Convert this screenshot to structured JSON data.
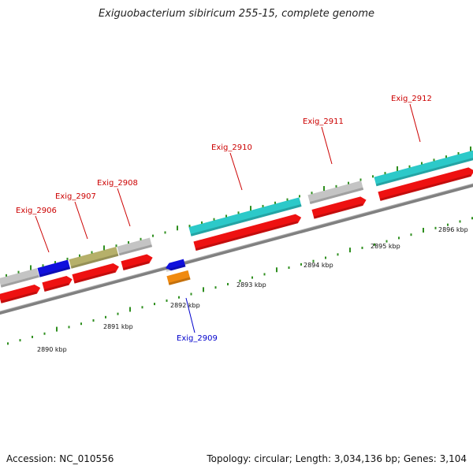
{
  "title": "Exiguobacterium sibiricum 255-15, complete genome",
  "footer": {
    "accession": "Accession: NC_010556",
    "summary": "Topology: circular; Length: 3,034,136 bp; Genes: 3,104"
  },
  "colors": {
    "backbone": "#808080",
    "tick": "#2f8f1f",
    "cds_red": "#ee1111",
    "grey_feature": "#c4c4c4",
    "cyan_feature": "#2cc9c9",
    "blue_feature": "#1010dd",
    "olive_feature": "#b6b06a",
    "orange_feature": "#f08a10",
    "label_red": "#cc0000",
    "label_blue": "#0000cc"
  },
  "kbp_labels": [
    "2890 kbp",
    "2891 kbp",
    "2892 kbp",
    "2893 kbp",
    "2894 kbp",
    "2895 kbp",
    "2896 kbp"
  ],
  "gene_labels": [
    {
      "name": "Exig_2906",
      "color": "red"
    },
    {
      "name": "Exig_2907",
      "color": "red"
    },
    {
      "name": "Exig_2908",
      "color": "red"
    },
    {
      "name": "Exig_2909",
      "color": "blue"
    },
    {
      "name": "Exig_2910",
      "color": "red"
    },
    {
      "name": "Exig_2911",
      "color": "red"
    },
    {
      "name": "Exig_2912",
      "color": "red"
    }
  ]
}
